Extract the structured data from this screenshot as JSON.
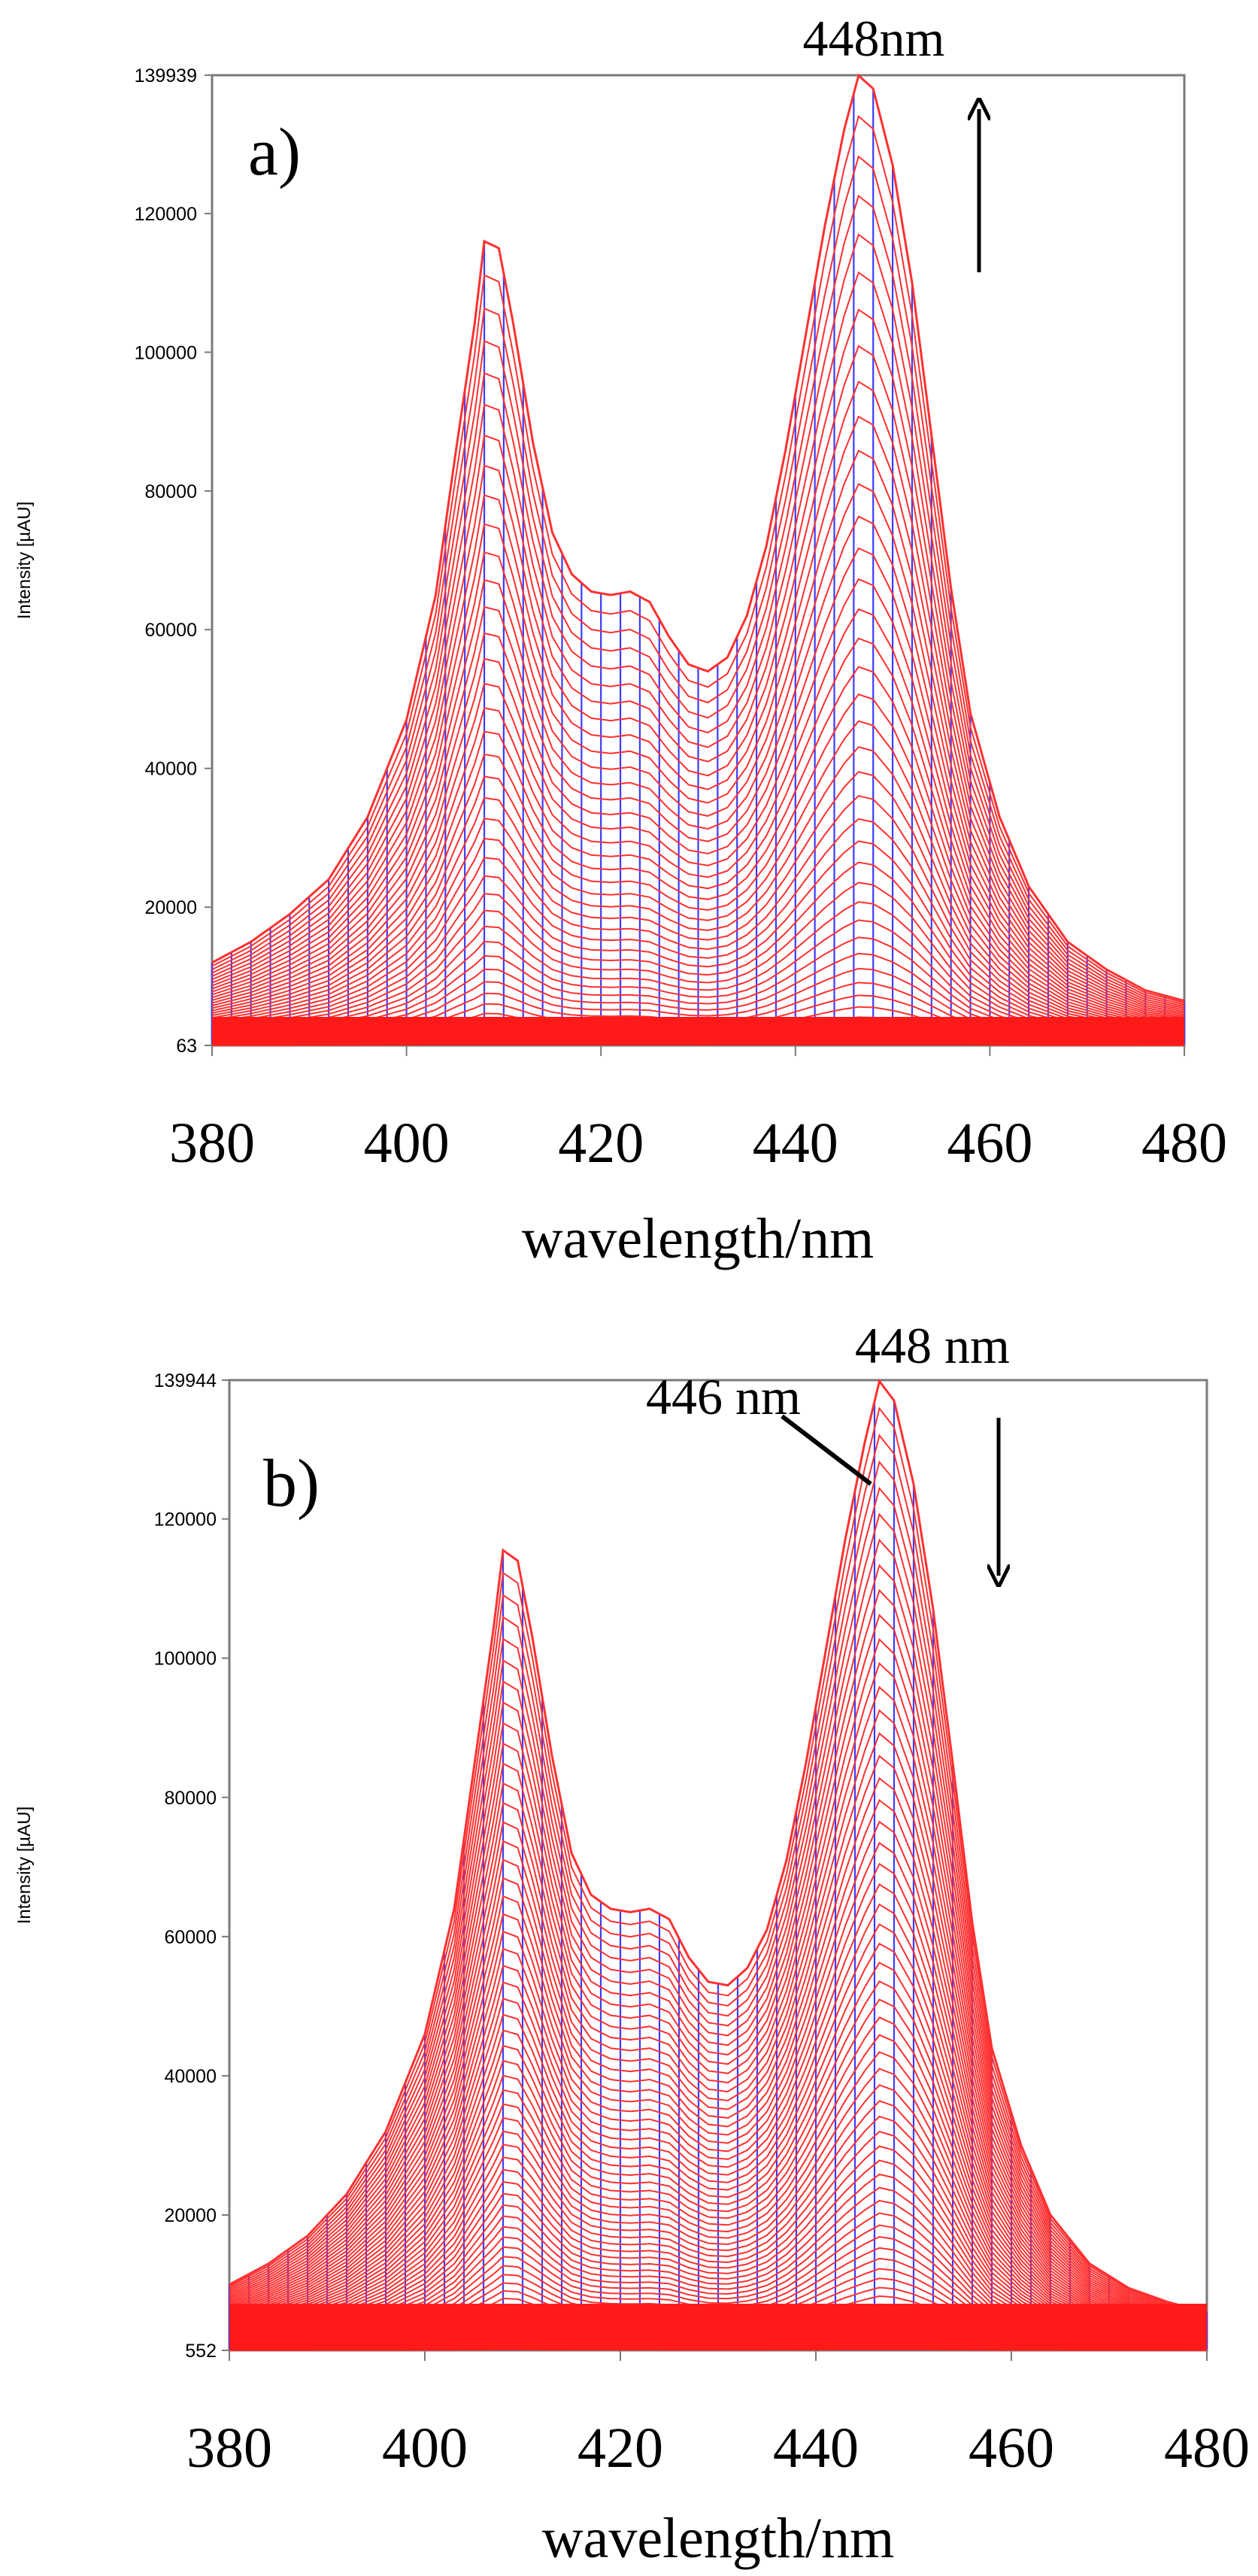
{
  "chart_data": [
    {
      "type": "line",
      "panel_label": "a)",
      "xlabel": "wavelength/nm",
      "ylabel": "Intensity [µAU]",
      "xlim": [
        380,
        480
      ],
      "ylim": [
        63,
        139939
      ],
      "x_ticks": [
        "380",
        "400",
        "420",
        "440",
        "460",
        "480"
      ],
      "y_ticks": [
        "63",
        "20000",
        "40000",
        "60000",
        "80000",
        "100000",
        "120000",
        "139939"
      ],
      "annotations": [
        {
          "text": "448nm",
          "x": 448
        }
      ],
      "arrow": "up",
      "series_count": 40,
      "max_spectrum": {
        "x": [
          380,
          384,
          388,
          392,
          396,
          400,
          403,
          405,
          407,
          408,
          409.5,
          411,
          413,
          415,
          417,
          419,
          421,
          423,
          425,
          427,
          429,
          431,
          433,
          435,
          437,
          439,
          441,
          443,
          445,
          446.5,
          448,
          450,
          452,
          454,
          456,
          458,
          461,
          464,
          468,
          472,
          476,
          480
        ],
        "y": [
          12000,
          15000,
          19000,
          24000,
          33000,
          47000,
          65000,
          85000,
          104000,
          116000,
          115000,
          104000,
          87000,
          74000,
          68000,
          65500,
          65000,
          65500,
          64000,
          59000,
          55000,
          54000,
          56000,
          62000,
          72000,
          86000,
          102000,
          118000,
          132000,
          139900,
          138000,
          127000,
          110000,
          88000,
          66000,
          48000,
          33000,
          23000,
          15000,
          11000,
          8000,
          6500
        ]
      }
    },
    {
      "type": "line",
      "panel_label": "b)",
      "xlabel": "wavelength/nm",
      "ylabel": "Intensity [µAU]",
      "xlim": [
        380,
        480
      ],
      "ylim": [
        552,
        139944
      ],
      "x_ticks": [
        "380",
        "400",
        "420",
        "440",
        "460",
        "480"
      ],
      "y_ticks": [
        "552",
        "20000",
        "40000",
        "60000",
        "80000",
        "100000",
        "120000",
        "139944"
      ],
      "annotations": [
        {
          "text": "448 nm",
          "x": 448
        },
        {
          "text": "446 nm",
          "x": 446
        }
      ],
      "arrow": "down",
      "series_count": 60,
      "max_spectrum": {
        "x": [
          380,
          384,
          388,
          392,
          396,
          400,
          403,
          405,
          407,
          408,
          409.5,
          411,
          413,
          415,
          417,
          419,
          421,
          423,
          425,
          427,
          429,
          431,
          433,
          435,
          437,
          439,
          441,
          443,
          445,
          446.5,
          448,
          450,
          452,
          454,
          456,
          458,
          461,
          464,
          468,
          472,
          476,
          480
        ],
        "y": [
          10000,
          13000,
          17000,
          23000,
          32000,
          46000,
          64000,
          84000,
          104000,
          115500,
          114000,
          103000,
          86000,
          72000,
          66000,
          64000,
          63500,
          64000,
          62500,
          57000,
          53500,
          53000,
          55500,
          61000,
          71000,
          85000,
          101000,
          117000,
          131000,
          139800,
          137000,
          125000,
          107000,
          85000,
          62000,
          44000,
          30000,
          20000,
          13000,
          9500,
          7500,
          6000
        ]
      }
    }
  ]
}
